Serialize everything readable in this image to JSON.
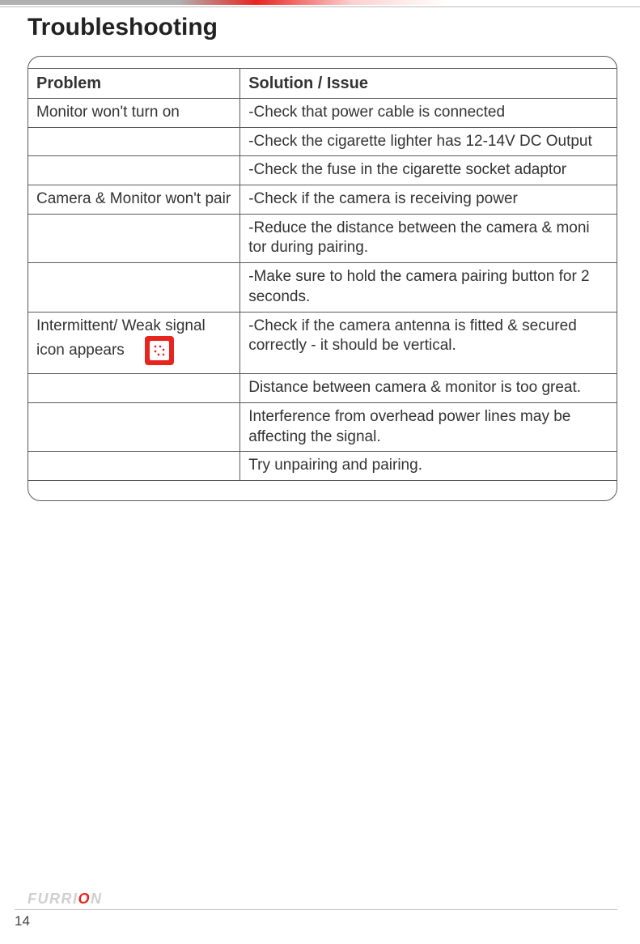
{
  "page": {
    "title": "Troubleshooting",
    "page_number": "14",
    "brand_prefix": "FURRI",
    "brand_accent": "O",
    "brand_suffix": "N"
  },
  "table": {
    "headers": {
      "col1": "Problem",
      "col2": "Solution / Issue"
    },
    "rows": [
      {
        "problem": "Monitor won't turn on",
        "solution": "-Check that power cable is connected",
        "has_icon": false
      },
      {
        "problem": "",
        "solution": "-Check the cigarette lighter has 12-14V DC Output",
        "has_icon": false
      },
      {
        "problem": "",
        "solution": "-Check the fuse in the cigarette socket adaptor",
        "has_icon": false
      },
      {
        "problem": "Camera & Monitor won't pair",
        "solution": "-Check if the camera is receiving power",
        "has_icon": false
      },
      {
        "problem": "",
        "solution": "-Reduce the distance between the camera & moni tor during pairing.",
        "has_icon": false
      },
      {
        "problem": "",
        "solution": "-Make sure to hold the camera pairing button for 2 seconds.",
        "has_icon": false
      },
      {
        "problem": "Intermittent/ Weak signal icon appears",
        "solution": "-Check if the camera antenna is fitted & secured correctly - it should be vertical.",
        "has_icon": true
      },
      {
        "problem": "",
        "solution": "Distance between camera & monitor is too great.",
        "has_icon": false
      },
      {
        "problem": "",
        "solution": "Interference from overhead power lines may be affecting the signal.",
        "has_icon": false
      },
      {
        "problem": "",
        "solution": "Try unpairing and pairing.",
        "has_icon": false
      }
    ]
  },
  "styling": {
    "title_fontsize": 30,
    "table_fontsize": 19,
    "border_color": "#5a5a5a",
    "border_radius": 16,
    "icon_bg": "#e8241f",
    "brand_gray": "#cfcfcf",
    "brand_accent": "#e8241f",
    "background": "#ffffff"
  }
}
